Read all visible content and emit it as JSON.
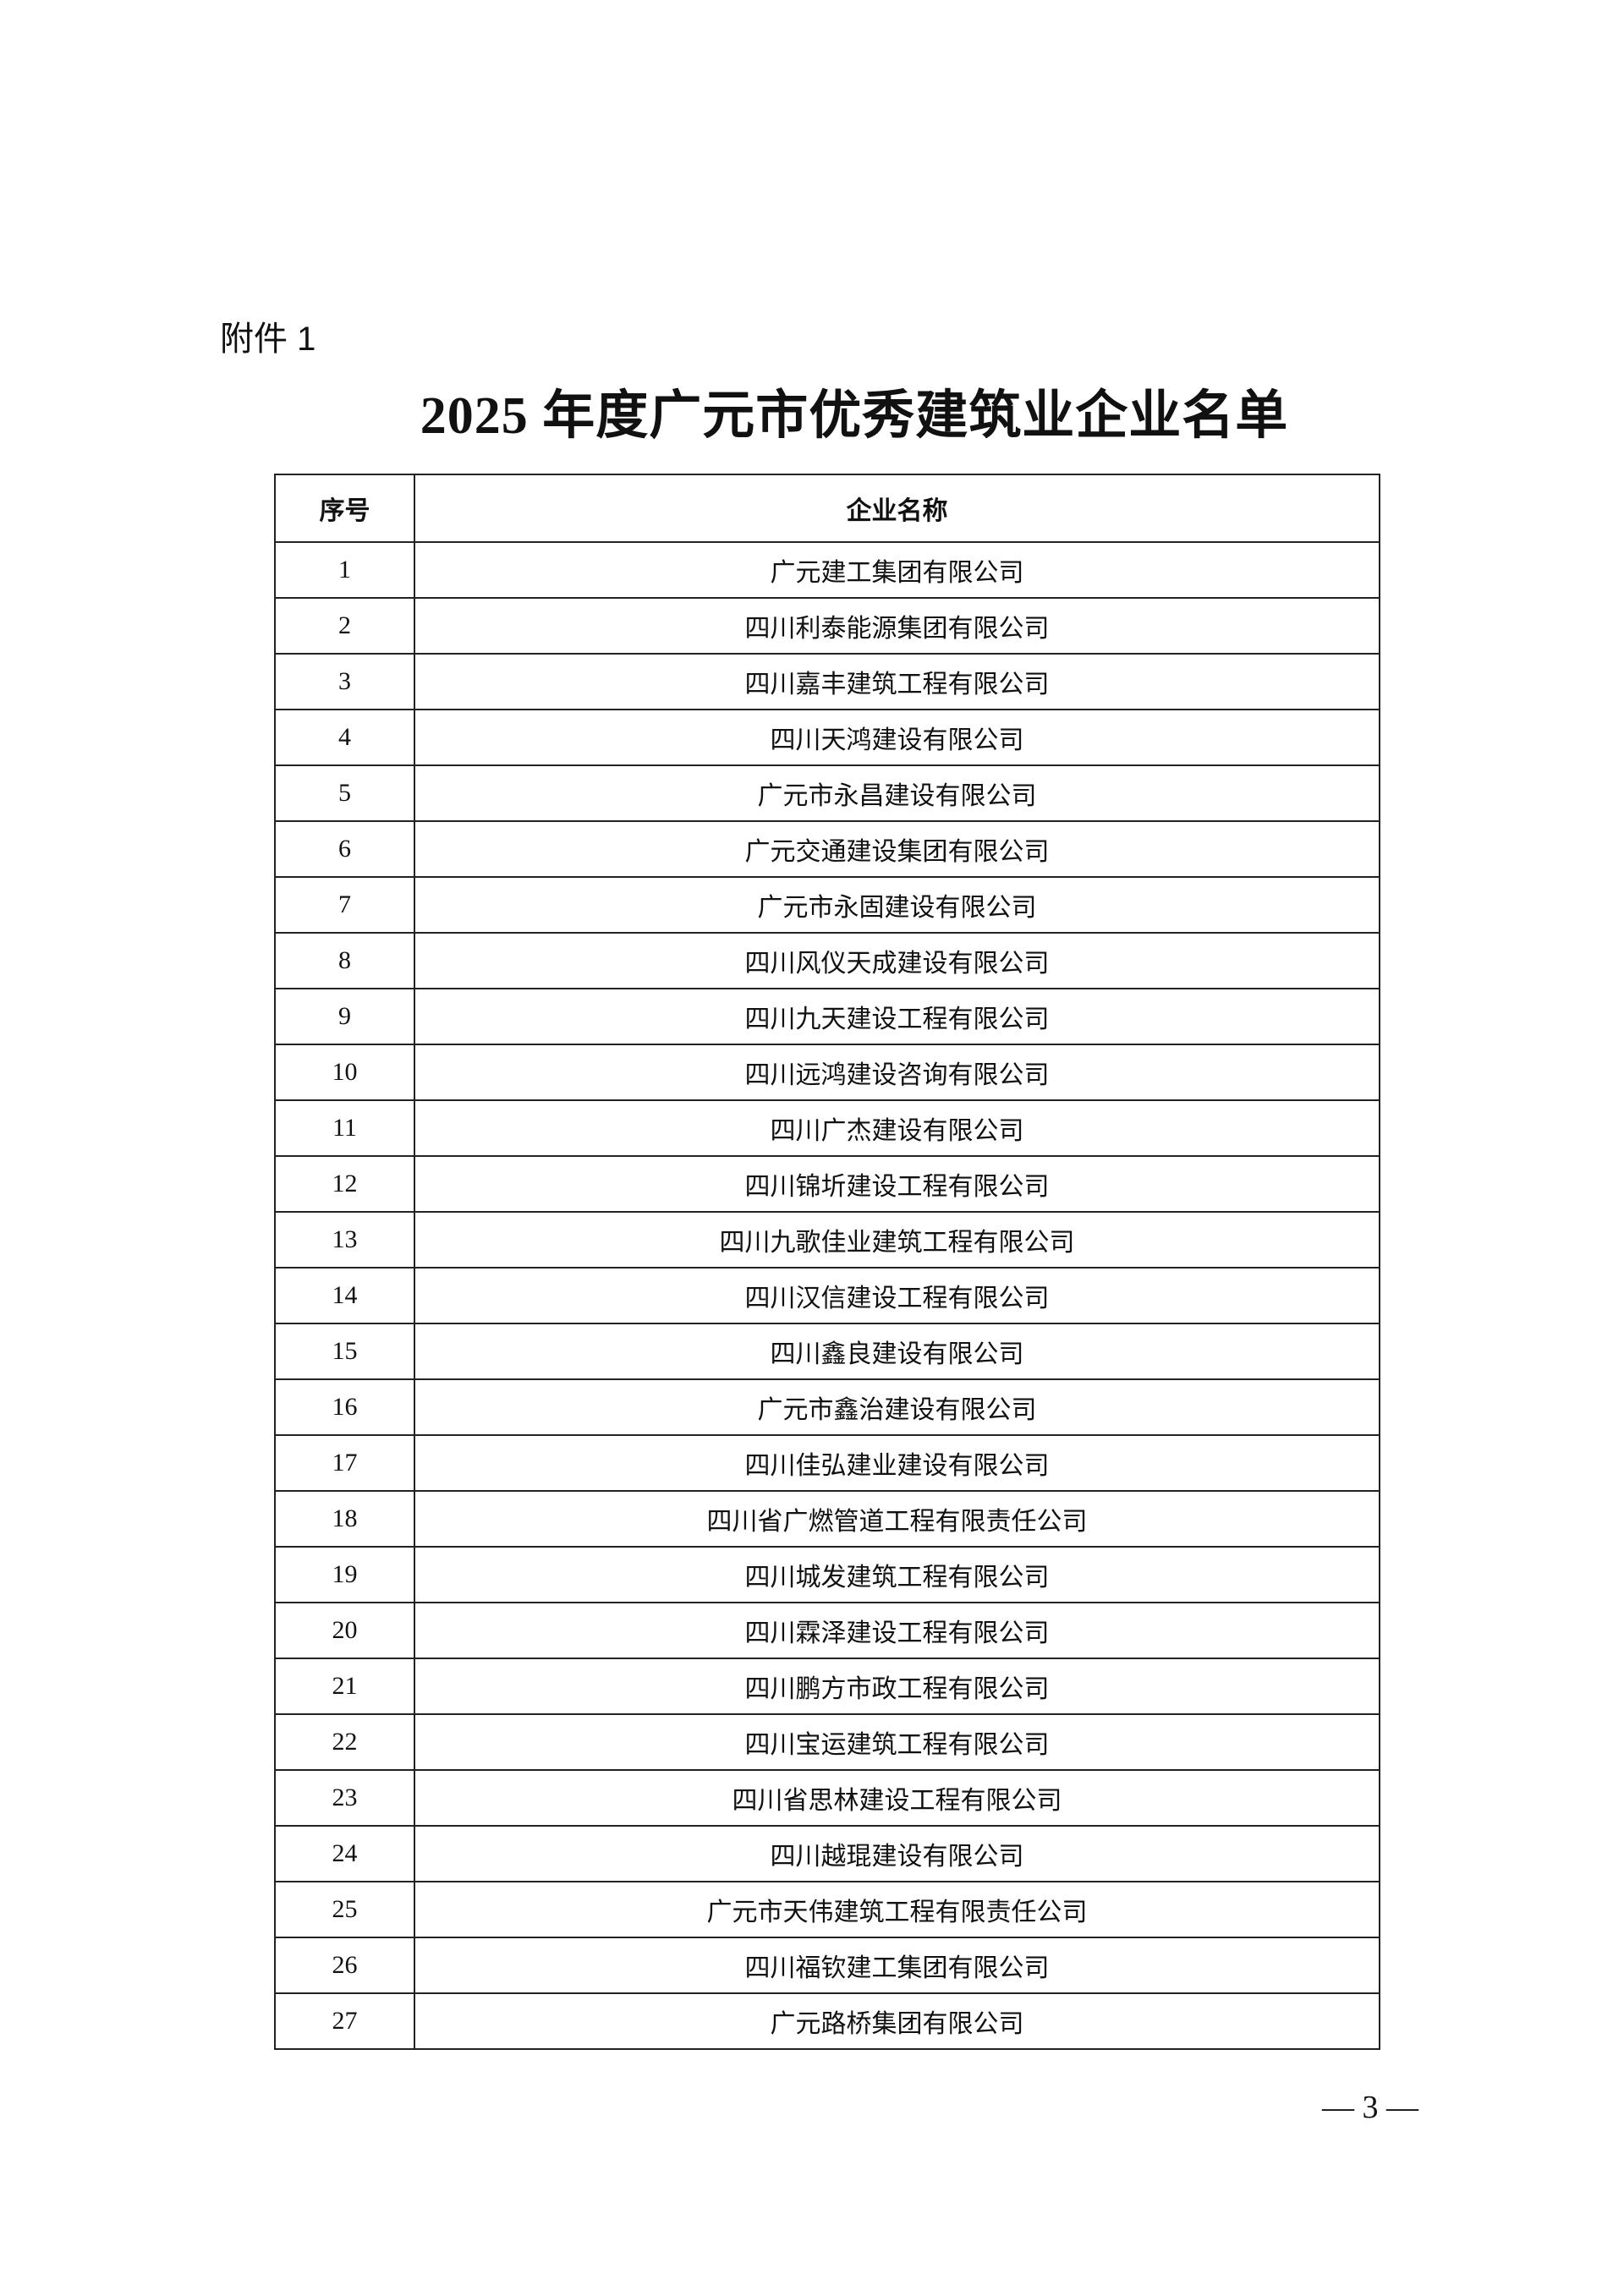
{
  "attachment_label": "附件 1",
  "title": "2025 年度广元市优秀建筑业企业名单",
  "table": {
    "headers": [
      "序号",
      "企业名称"
    ],
    "rows": [
      [
        "1",
        "广元建工集团有限公司"
      ],
      [
        "2",
        "四川利泰能源集团有限公司"
      ],
      [
        "3",
        "四川嘉丰建筑工程有限公司"
      ],
      [
        "4",
        "四川天鸿建设有限公司"
      ],
      [
        "5",
        "广元市永昌建设有限公司"
      ],
      [
        "6",
        "广元交通建设集团有限公司"
      ],
      [
        "7",
        "广元市永固建设有限公司"
      ],
      [
        "8",
        "四川风仪天成建设有限公司"
      ],
      [
        "9",
        "四川九天建设工程有限公司"
      ],
      [
        "10",
        "四川远鸿建设咨询有限公司"
      ],
      [
        "11",
        "四川广杰建设有限公司"
      ],
      [
        "12",
        "四川锦圻建设工程有限公司"
      ],
      [
        "13",
        "四川九歌佳业建筑工程有限公司"
      ],
      [
        "14",
        "四川汉信建设工程有限公司"
      ],
      [
        "15",
        "四川鑫良建设有限公司"
      ],
      [
        "16",
        "广元市鑫治建设有限公司"
      ],
      [
        "17",
        "四川佳弘建业建设有限公司"
      ],
      [
        "18",
        "四川省广燃管道工程有限责任公司"
      ],
      [
        "19",
        "四川城发建筑工程有限公司"
      ],
      [
        "20",
        "四川霖泽建设工程有限公司"
      ],
      [
        "21",
        "四川鹏方市政工程有限公司"
      ],
      [
        "22",
        "四川宝运建筑工程有限公司"
      ],
      [
        "23",
        "四川省思林建设工程有限公司"
      ],
      [
        "24",
        "四川越琨建设有限公司"
      ],
      [
        "25",
        "广元市天伟建筑工程有限责任公司"
      ],
      [
        "26",
        "四川福钦建工集团有限公司"
      ],
      [
        "27",
        "广元路桥集团有限公司"
      ]
    ]
  },
  "page_number": "— 3 —"
}
